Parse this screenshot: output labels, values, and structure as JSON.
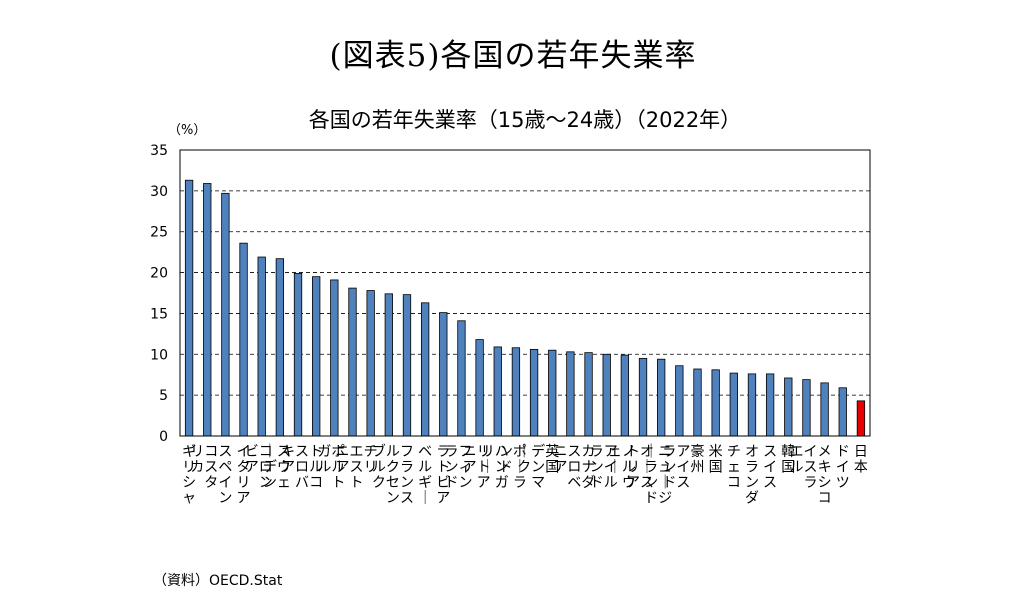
{
  "page_title": "(図表5)各国の若年失業率",
  "source": "（資料）OECD.Stat",
  "chart_data": {
    "type": "bar",
    "title": "各国の若年失業率（15歳～24歳）（2022年）",
    "unit": "（%）",
    "xlabel": "",
    "ylabel": "",
    "ylim": [
      0,
      35
    ],
    "yticks": [
      0,
      5,
      10,
      15,
      20,
      25,
      30,
      35
    ],
    "grid": true,
    "legend": "none",
    "bar_color": "#4F81BD",
    "highlight_color": "#E60000",
    "highlight_index": 37,
    "categories": [
      "ギリシャ",
      "コスタリカ",
      "スペイン",
      "イタリア",
      "コロンビア",
      "スウェーデン",
      "スロバキア",
      "トルコ",
      "ポルトガル",
      "エストニア",
      "チリ",
      "ルクセンブルク",
      "フランス",
      "ベルギー",
      "ラトビア",
      "フィンランド",
      "リトアニア",
      "ハンガリー",
      "ポーランド",
      "デンマーク",
      "英国",
      "スロベニア",
      "カナダ",
      "アイルランド",
      "ノルウェー",
      "オーストリア",
      "ニュージーランド",
      "アイスランド",
      "豪州",
      "米国",
      "チェコ",
      "オランダ",
      "スイス",
      "韓国",
      "イスラエル",
      "メキシコ",
      "ドイツ",
      "日本"
    ],
    "values": [
      31.3,
      30.9,
      29.7,
      23.6,
      21.9,
      21.7,
      19.9,
      19.5,
      19.1,
      18.1,
      17.8,
      17.4,
      17.3,
      16.3,
      15.1,
      14.1,
      11.8,
      10.9,
      10.8,
      10.6,
      10.5,
      10.3,
      10.2,
      10.0,
      9.9,
      9.5,
      9.4,
      8.6,
      8.2,
      8.1,
      7.7,
      7.6,
      7.6,
      7.1,
      6.9,
      6.5,
      5.9,
      4.3
    ]
  }
}
